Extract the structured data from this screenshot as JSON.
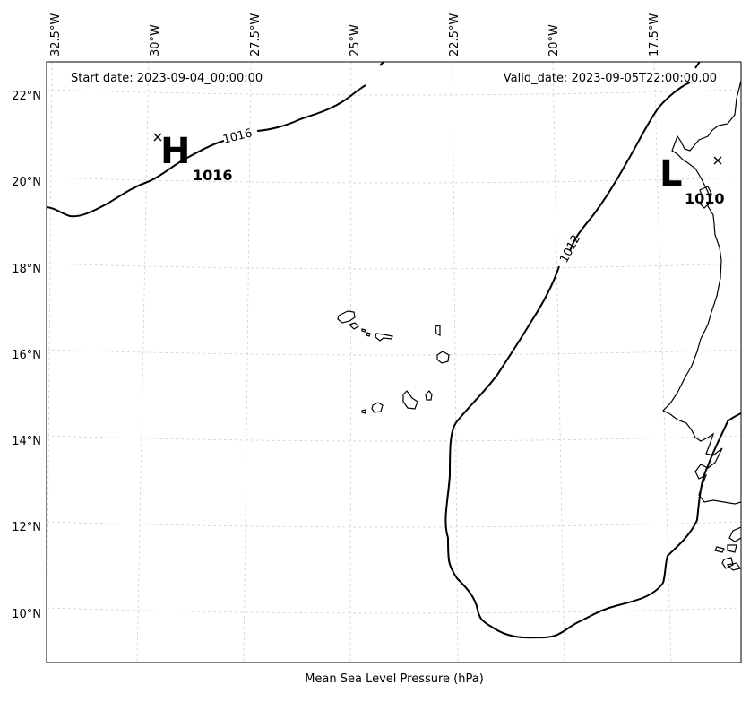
{
  "map": {
    "start_date": "Start date: 2023-09-04_00:00:00",
    "valid_date": "Valid_date: 2023-09-05T22:00:00.00",
    "caption": "Mean Sea Level Pressure (hPa)",
    "lon_labels": [
      "32.5°W",
      "30°W",
      "27.5°W",
      "25°W",
      "22.5°W",
      "20°W",
      "17.5°W"
    ],
    "lat_labels": [
      "22°N",
      "20°N",
      "18°N",
      "16°N",
      "14°N",
      "12°N",
      "10°N"
    ],
    "contour_labels": [
      "1016",
      "1012"
    ],
    "high": {
      "letter": "H",
      "value": "1016"
    },
    "low": {
      "letter": "L",
      "value": "1010"
    }
  }
}
